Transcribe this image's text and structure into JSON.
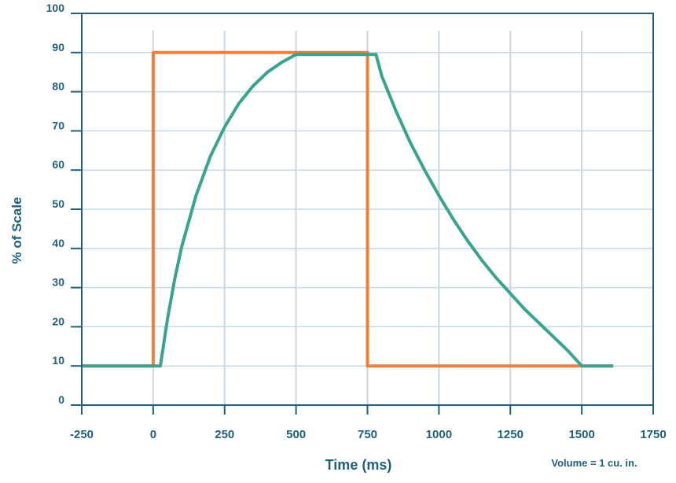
{
  "chart_data": {
    "type": "line",
    "title": "",
    "xlabel": "Time (ms)",
    "ylabel": "% of Scale",
    "note": "Volume = 1 cu. in.",
    "xlim": [
      -250,
      1750
    ],
    "ylim": [
      0,
      100
    ],
    "x_ticks": [
      -250,
      0,
      250,
      500,
      750,
      1000,
      1250,
      1500,
      1750
    ],
    "y_ticks": [
      0,
      10,
      20,
      30,
      40,
      50,
      60,
      70,
      80,
      90,
      100
    ],
    "grid": true,
    "colors": {
      "axis": "#1f5f7a",
      "grid": "#c9d6e3",
      "step": "#f07f3c",
      "response": "#3aa38f"
    },
    "series": [
      {
        "points": [
          [
            -250,
            10
          ],
          [
            0,
            10
          ],
          [
            0,
            90
          ],
          [
            750,
            90
          ],
          [
            750,
            10
          ],
          [
            1610,
            10
          ]
        ]
      },
      {
        "points": [
          [
            -250,
            10
          ],
          [
            25,
            10
          ],
          [
            50,
            22
          ],
          [
            75,
            32
          ],
          [
            100,
            40.5
          ],
          [
            150,
            53.5
          ],
          [
            200,
            63.5
          ],
          [
            250,
            71
          ],
          [
            300,
            77
          ],
          [
            350,
            81.5
          ],
          [
            400,
            85
          ],
          [
            450,
            87.5
          ],
          [
            500,
            89.5
          ],
          [
            780,
            89.5
          ],
          [
            800,
            84
          ],
          [
            850,
            75
          ],
          [
            900,
            67
          ],
          [
            950,
            60
          ],
          [
            1000,
            53.5
          ],
          [
            1050,
            47.5
          ],
          [
            1100,
            42
          ],
          [
            1150,
            37
          ],
          [
            1200,
            32.5
          ],
          [
            1250,
            28.5
          ],
          [
            1300,
            24.5
          ],
          [
            1350,
            21
          ],
          [
            1400,
            17.5
          ],
          [
            1450,
            14
          ],
          [
            1500,
            10
          ],
          [
            1610,
            10
          ]
        ]
      }
    ]
  }
}
